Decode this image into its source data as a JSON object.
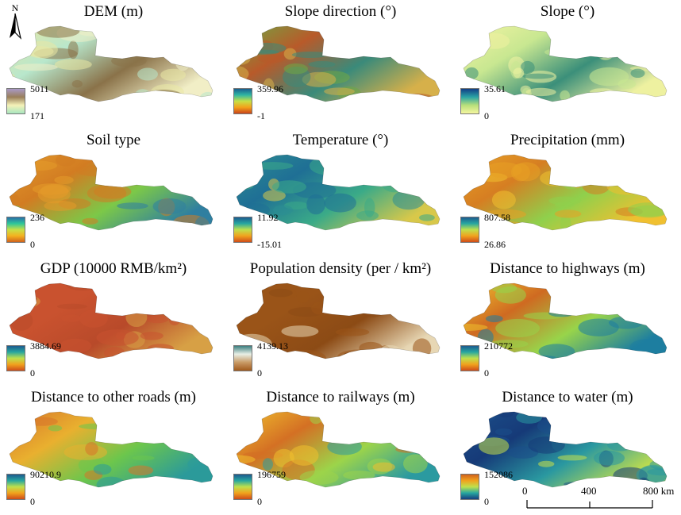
{
  "panels": [
    {
      "title": "DEM (m)",
      "legend_max": "5011",
      "legend_min": "171",
      "ramp": [
        "#a999c6",
        "#9a7f5a",
        "#f5f2b8",
        "#a8e6c0"
      ],
      "map": [
        "#e9e7a4",
        "#b8e7cc",
        "#8a7249",
        "#f1eec6"
      ]
    },
    {
      "title": "Slope direction (°)",
      "legend_max": "359.96",
      "legend_min": "-1",
      "ramp": [
        "#1a5f8f",
        "#2fb6a3",
        "#c6e046",
        "#f3a21a",
        "#c9441a"
      ],
      "map": [
        "#6fa843",
        "#b85a2a",
        "#3a8a7a",
        "#d6b04a"
      ]
    },
    {
      "title": "Slope (°)",
      "legend_max": "35.61",
      "legend_min": "0",
      "ramp": [
        "#123e86",
        "#2aa3a5",
        "#b8e07a",
        "#f5f6a0"
      ],
      "map": [
        "#f3f4a3",
        "#c8e791",
        "#3b8f7a",
        "#eef1a0"
      ]
    },
    {
      "title": "Soil type",
      "legend_max": "236",
      "legend_min": "0",
      "ramp": [
        "#2a6fa8",
        "#2ec79a",
        "#c8e046",
        "#f4b11f",
        "#d0621d"
      ],
      "map": [
        "#e39a2a",
        "#d27c22",
        "#7cc848",
        "#2f7fa0"
      ]
    },
    {
      "title": "Temperature (°)",
      "legend_max": "11.92",
      "legend_min": "-15.01",
      "ramp": [
        "#1d5a8f",
        "#27a7a0",
        "#bfe04c",
        "#f1a21d",
        "#cf4c1a"
      ],
      "map": [
        "#2c8e93",
        "#1f6f95",
        "#3aaa88",
        "#d8c84a"
      ]
    },
    {
      "title": "Precipitation (mm)",
      "legend_max": "807.58",
      "legend_min": "26.86",
      "ramp": [
        "#1d5a8f",
        "#27a7a0",
        "#bfe04c",
        "#f1a21d",
        "#cf4c1a"
      ],
      "map": [
        "#e8a125",
        "#d67e22",
        "#8fd04c",
        "#f0c030"
      ]
    },
    {
      "title": "GDP (10000 RMB/km²)",
      "legend_max": "3884.69",
      "legend_min": "0",
      "ramp": [
        "#1d5a8f",
        "#27a7a0",
        "#bfe04c",
        "#f1a21d",
        "#cf4c1a"
      ],
      "map": [
        "#c9522f",
        "#c9522f",
        "#b84a2a",
        "#d7a045"
      ]
    },
    {
      "title": "Population density (per / km²)",
      "legend_max": "4139.13",
      "legend_min": "0",
      "ramp": [
        "#3b7f80",
        "#e8efe6",
        "#c89a66",
        "#a15a1c"
      ],
      "map": [
        "#9a5418",
        "#9a5418",
        "#8c4b15",
        "#e7d7b4"
      ]
    },
    {
      "title": "Distance to highways (m)",
      "legend_max": "210772",
      "legend_min": "0",
      "ramp": [
        "#1d5a8f",
        "#27a7a0",
        "#bfe04c",
        "#f1a21d",
        "#cf4c1a"
      ],
      "map": [
        "#efc12e",
        "#cf6a21",
        "#98d44a",
        "#1d7ea0"
      ]
    },
    {
      "title": "Distance to other roads (m)",
      "legend_max": "90210.9",
      "legend_min": "0",
      "ramp": [
        "#1d5a8f",
        "#27a7a0",
        "#bfe04c",
        "#f1a21d",
        "#cf4c1a"
      ],
      "map": [
        "#d7742a",
        "#e9b02f",
        "#6cc64c",
        "#2b9a9a"
      ]
    },
    {
      "title": "Distance to railways (m)",
      "legend_max": "196759",
      "legend_min": "0",
      "ramp": [
        "#1d5a8f",
        "#27a7a0",
        "#bfe04c",
        "#f1a21d",
        "#cf4c1a"
      ],
      "map": [
        "#f0c02e",
        "#d47024",
        "#9cd44a",
        "#2b9aa0"
      ]
    },
    {
      "title": "Distance to water (m)",
      "legend_max": "152086",
      "legend_min": "0",
      "ramp": [
        "#d0621d",
        "#f1a21d",
        "#bfe04c",
        "#27a7a0",
        "#173f7f"
      ],
      "map": [
        "#1c4f8a",
        "#163a78",
        "#2a98a0",
        "#c6e04a"
      ]
    }
  ],
  "north_arrow": {
    "label": "N"
  },
  "scale_bar": {
    "labels": [
      "0",
      "400",
      "800 km"
    ]
  }
}
